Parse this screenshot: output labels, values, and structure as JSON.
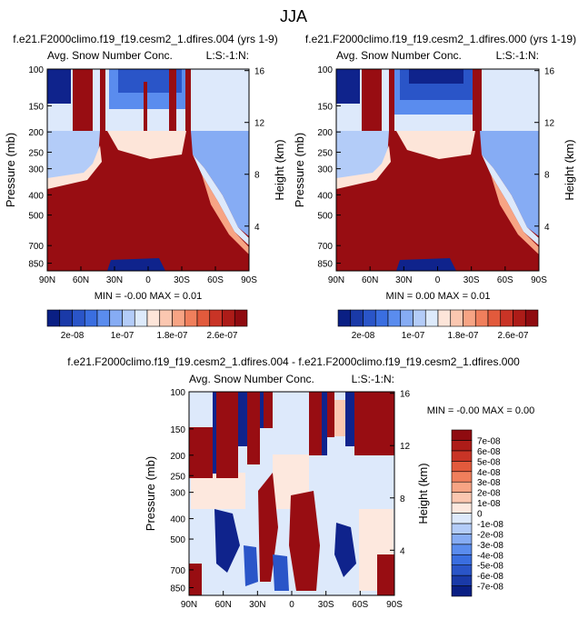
{
  "figure_title": "JJA",
  "colors": {
    "axis": "#000000",
    "background": "#ffffff",
    "dark_red": "#980d12",
    "dark_blue": "#0f238c"
  },
  "chart_data": [
    {
      "type": "heatmap",
      "id": "top-left",
      "case_title": "f.e21.F2000climo.f19_f19.cesm2_1.dfires.004 (yrs 1-9)",
      "subtitle": "Avg. Snow Number Conc.",
      "region_label": "L:S:-1:N:",
      "ylabel": "Pressure (mb)",
      "ylabel_right": "Height (km)",
      "x_ticks": [
        "90N",
        "60N",
        "30N",
        "0",
        "30S",
        "60S",
        "90S"
      ],
      "x_tick_values": [
        90,
        60,
        30,
        0,
        -30,
        -60,
        -90
      ],
      "y_ticks": [
        "100",
        "150",
        "200",
        "250",
        "300",
        "400",
        "500",
        "700",
        "850"
      ],
      "y_tick_values": [
        100,
        150,
        200,
        250,
        300,
        400,
        500,
        700,
        850
      ],
      "y_right_ticks": [
        "16",
        "12",
        "8",
        "4"
      ],
      "y_right_tick_values": [
        16,
        12,
        8,
        4
      ],
      "xlim": [
        90,
        -90
      ],
      "ylim": [
        100,
        925
      ],
      "min_label": "MIN =  -0.00   MAX =  0.01",
      "min_value": -0.0,
      "max_value": 0.01
    },
    {
      "type": "heatmap",
      "id": "top-right",
      "case_title": "f.e21.F2000climo.f19_f19.cesm2_1.dfires.000 (yrs 1-19)",
      "subtitle": "Avg. Snow Number Conc.",
      "region_label": "L:S:-1:N:",
      "ylabel": "Pressure (mb)",
      "ylabel_right": "Height (km)",
      "x_ticks": [
        "90N",
        "60N",
        "30N",
        "0",
        "30S",
        "60S",
        "90S"
      ],
      "x_tick_values": [
        90,
        60,
        30,
        0,
        -30,
        -60,
        -90
      ],
      "y_ticks": [
        "100",
        "150",
        "200",
        "250",
        "300",
        "400",
        "500",
        "700",
        "850"
      ],
      "y_tick_values": [
        100,
        150,
        200,
        250,
        300,
        400,
        500,
        700,
        850
      ],
      "y_right_ticks": [
        "16",
        "12",
        "8",
        "4"
      ],
      "y_right_tick_values": [
        16,
        12,
        8,
        4
      ],
      "xlim": [
        90,
        -90
      ],
      "ylim": [
        100,
        925
      ],
      "min_label": "MIN =  0.00   MAX =  0.01",
      "min_value": 0.0,
      "max_value": 0.01
    },
    {
      "type": "heatmap",
      "id": "bottom-diff",
      "case_title": "f.e21.F2000climo.f19_f19.cesm2_1.dfires.004 - f.e21.F2000climo.f19_f19.cesm2_1.dfires.000",
      "subtitle": "Avg. Snow Number Conc.",
      "region_label": "L:S:-1:N:",
      "ylabel": "Pressure (mb)",
      "ylabel_right": "Height (km)",
      "x_ticks": [
        "90N",
        "60N",
        "30N",
        "0",
        "30S",
        "60S",
        "90S"
      ],
      "x_tick_values": [
        90,
        60,
        30,
        0,
        -30,
        -60,
        -90
      ],
      "y_ticks": [
        "100",
        "150",
        "200",
        "250",
        "300",
        "400",
        "500",
        "700",
        "850"
      ],
      "y_tick_values": [
        100,
        150,
        200,
        250,
        300,
        400,
        500,
        700,
        850
      ],
      "y_right_ticks": [
        "16",
        "12",
        "8",
        "4"
      ],
      "y_right_tick_values": [
        16,
        12,
        8,
        4
      ],
      "xlim": [
        90,
        -90
      ],
      "ylim": [
        100,
        925
      ],
      "min_label": "MIN =  -0.00   MAX =  0.00",
      "min_value": -0.0,
      "max_value": 0.0
    }
  ],
  "colorbar_top": {
    "colors": [
      "#0a1f84",
      "#1a3aa8",
      "#2a55c8",
      "#3a6ee0",
      "#5a8cee",
      "#86acf4",
      "#b3ccf8",
      "#ddeafb",
      "#fde5d9",
      "#fbc7b0",
      "#f7a484",
      "#f07f5c",
      "#e25a3c",
      "#c93426",
      "#ad1c18",
      "#8f0b10"
    ],
    "labels": [
      "2e-08",
      "1e-07",
      "1.8e-07",
      "2.6e-07"
    ],
    "label_positions": [
      1,
      5,
      9,
      13
    ]
  },
  "colorbar_diff": {
    "colors": [
      "#0a1f84",
      "#1a3aa8",
      "#2a55c8",
      "#3a6ee0",
      "#5a8cee",
      "#86acf4",
      "#b3ccf8",
      "#dde9fb",
      "#fde8de",
      "#fbc7b0",
      "#f7a484",
      "#f07f5c",
      "#e25a3c",
      "#c93426",
      "#ad1c18",
      "#8f0b10"
    ],
    "labels": [
      "-7e-08",
      "-6e-08",
      "-5e-08",
      "-4e-08",
      "-3e-08",
      "-2e-08",
      "-1e-08",
      "0",
      "1e-08",
      "2e-08",
      "3e-08",
      "4e-08",
      "5e-08",
      "6e-08",
      "7e-08"
    ]
  }
}
